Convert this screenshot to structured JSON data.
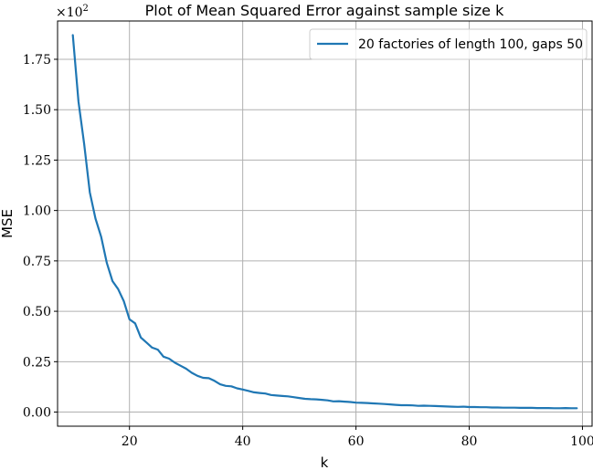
{
  "chart_data": {
    "type": "line",
    "title": "Plot of Mean Squared Error against sample size k",
    "xlabel": "k",
    "ylabel": "MSE",
    "y_scale_note": "×10^2",
    "xlim": [
      7.3,
      101.7
    ],
    "ylim": [
      -0.07,
      1.94
    ],
    "xticks": [
      20,
      40,
      60,
      80,
      100
    ],
    "yticks": [
      0.0,
      0.25,
      0.5,
      0.75,
      1.0,
      1.25,
      1.5,
      1.75
    ],
    "ytick_labels": [
      "0.00",
      "0.25",
      "0.50",
      "0.75",
      "1.00",
      "1.25",
      "1.50",
      "1.75"
    ],
    "grid": true,
    "legend_position": "top-right",
    "series": [
      {
        "name": "20 factories of length 100, gaps 50",
        "color": "#1f77b4",
        "x": [
          10,
          11,
          12,
          13,
          14,
          15,
          16,
          17,
          18,
          19,
          20,
          21,
          22,
          23,
          24,
          25,
          26,
          27,
          28,
          29,
          30,
          31,
          32,
          33,
          34,
          35,
          36,
          37,
          38,
          39,
          40,
          41,
          42,
          43,
          44,
          45,
          46,
          47,
          48,
          49,
          50,
          51,
          52,
          53,
          54,
          55,
          56,
          57,
          58,
          59,
          60,
          61,
          62,
          63,
          64,
          65,
          66,
          67,
          68,
          69,
          70,
          71,
          72,
          73,
          74,
          75,
          76,
          77,
          78,
          79,
          80,
          81,
          82,
          83,
          84,
          85,
          86,
          87,
          88,
          89,
          90,
          91,
          92,
          93,
          94,
          95,
          96,
          97,
          98,
          99
        ],
        "y": [
          1.87,
          1.54,
          1.33,
          1.09,
          0.96,
          0.87,
          0.74,
          0.65,
          0.61,
          0.55,
          0.46,
          0.44,
          0.37,
          0.345,
          0.32,
          0.31,
          0.275,
          0.265,
          0.245,
          0.23,
          0.215,
          0.195,
          0.18,
          0.17,
          0.168,
          0.155,
          0.138,
          0.13,
          0.128,
          0.118,
          0.112,
          0.105,
          0.098,
          0.095,
          0.092,
          0.085,
          0.082,
          0.08,
          0.078,
          0.074,
          0.07,
          0.066,
          0.064,
          0.063,
          0.061,
          0.058,
          0.053,
          0.054,
          0.052,
          0.05,
          0.047,
          0.046,
          0.045,
          0.043,
          0.042,
          0.04,
          0.038,
          0.036,
          0.034,
          0.034,
          0.033,
          0.031,
          0.032,
          0.031,
          0.03,
          0.029,
          0.028,
          0.027,
          0.026,
          0.027,
          0.025,
          0.025,
          0.024,
          0.024,
          0.023,
          0.023,
          0.022,
          0.022,
          0.022,
          0.021,
          0.021,
          0.021,
          0.02,
          0.02,
          0.02,
          0.019,
          0.019,
          0.02,
          0.019,
          0.019
        ]
      }
    ]
  }
}
